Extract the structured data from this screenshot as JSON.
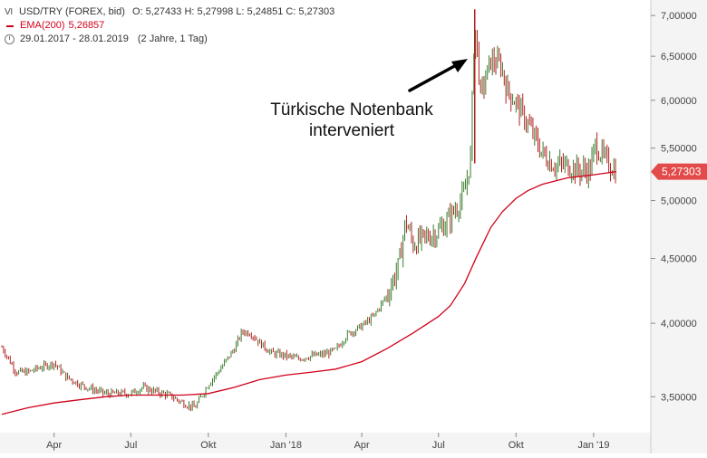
{
  "legend": {
    "instrument": "USD/TRY (FOREX, bid)",
    "ohlc": "O: 5,27433  H: 5,27998  L: 5,24851  C: 5,27303",
    "ema_label": "EMA(200)",
    "ema_value": "5,26857",
    "period": "29.01.2017 - 28.01.2019",
    "period_detail": "(2 Jahre, 1 Tag)"
  },
  "annotation": {
    "line1": "Türkische Notenbank",
    "line2": "interveniert"
  },
  "last_price_label": "5,27303",
  "colors": {
    "up": "#3a7d2c",
    "down": "#b22222",
    "ema": "#d0021b",
    "axis_text": "#444444"
  },
  "chart_data": {
    "type": "line",
    "scale": "log",
    "ylim": [
      3.3,
      7.2
    ],
    "y_ticks": [
      "7,00000",
      "6,50000",
      "6,00000",
      "5,50000",
      "5,00000",
      "4,50000",
      "4,00000",
      "3,50000"
    ],
    "x_ticks": [
      "Apr",
      "Jul",
      "Okt",
      "Jan '18",
      "Apr",
      "Jul",
      "Okt",
      "Jan '19"
    ],
    "x_range": [
      "2017-01-29",
      "2019-01-28"
    ],
    "grid": false,
    "series": [
      {
        "name": "USD/TRY (FOREX, bid)",
        "x": [
          "2017-01-29",
          "2017-02-15",
          "2017-03-01",
          "2017-03-15",
          "2017-04-01",
          "2017-04-15",
          "2017-05-01",
          "2017-05-15",
          "2017-06-01",
          "2017-06-15",
          "2017-07-01",
          "2017-07-15",
          "2017-08-01",
          "2017-08-15",
          "2017-09-01",
          "2017-09-15",
          "2017-10-01",
          "2017-10-15",
          "2017-11-01",
          "2017-11-10",
          "2017-11-20",
          "2017-12-01",
          "2017-12-15",
          "2018-01-01",
          "2018-01-15",
          "2018-02-01",
          "2018-02-15",
          "2018-03-01",
          "2018-03-15",
          "2018-04-01",
          "2018-04-15",
          "2018-05-01",
          "2018-05-15",
          "2018-05-23",
          "2018-06-01",
          "2018-06-15",
          "2018-07-01",
          "2018-07-15",
          "2018-08-01",
          "2018-08-08",
          "2018-08-13",
          "2018-08-20",
          "2018-09-01",
          "2018-09-13",
          "2018-09-20",
          "2018-10-01",
          "2018-10-15",
          "2018-11-01",
          "2018-11-15",
          "2018-12-01",
          "2018-12-15",
          "2018-12-28",
          "2019-01-03",
          "2019-01-15",
          "2019-01-28"
        ],
        "values": [
          3.83,
          3.66,
          3.66,
          3.69,
          3.72,
          3.63,
          3.58,
          3.55,
          3.52,
          3.52,
          3.52,
          3.56,
          3.53,
          3.51,
          3.46,
          3.43,
          3.58,
          3.68,
          3.82,
          3.94,
          3.93,
          3.86,
          3.79,
          3.77,
          3.75,
          3.77,
          3.78,
          3.81,
          3.92,
          3.98,
          4.05,
          4.21,
          4.45,
          4.82,
          4.62,
          4.67,
          4.73,
          4.85,
          5.06,
          5.41,
          6.95,
          6.05,
          6.45,
          6.4,
          6.12,
          5.97,
          5.75,
          5.45,
          5.33,
          5.33,
          5.28,
          5.29,
          5.53,
          5.38,
          5.27
        ]
      },
      {
        "name": "EMA(200)",
        "x": [
          "2017-01-29",
          "2017-03-01",
          "2017-04-01",
          "2017-05-01",
          "2017-06-01",
          "2017-07-01",
          "2017-08-01",
          "2017-09-01",
          "2017-10-01",
          "2017-11-01",
          "2017-12-01",
          "2018-01-01",
          "2018-02-01",
          "2018-03-01",
          "2018-04-01",
          "2018-05-01",
          "2018-06-01",
          "2018-07-01",
          "2018-07-15",
          "2018-08-01",
          "2018-08-15",
          "2018-09-01",
          "2018-09-15",
          "2018-10-01",
          "2018-10-15",
          "2018-11-01",
          "2018-12-01",
          "2019-01-01",
          "2019-01-28"
        ],
        "values": [
          3.39,
          3.43,
          3.46,
          3.48,
          3.5,
          3.51,
          3.51,
          3.51,
          3.52,
          3.56,
          3.61,
          3.64,
          3.66,
          3.68,
          3.73,
          3.82,
          3.93,
          4.05,
          4.13,
          4.3,
          4.51,
          4.76,
          4.9,
          5.02,
          5.09,
          5.15,
          5.21,
          5.24,
          5.27
        ]
      }
    ]
  }
}
